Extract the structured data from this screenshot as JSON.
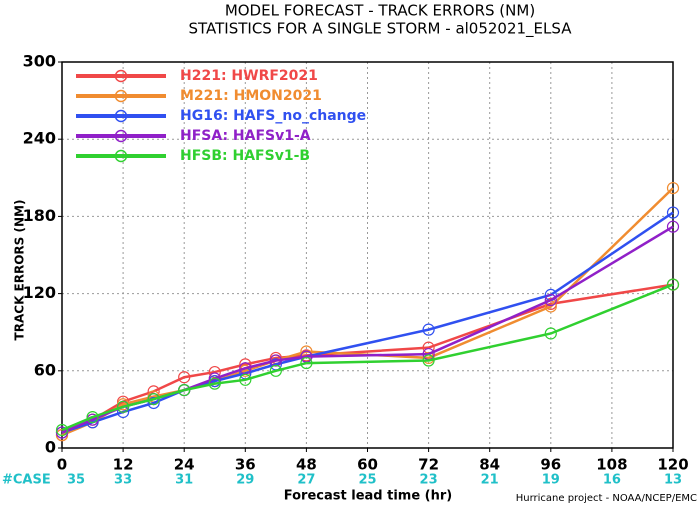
{
  "chart_data": {
    "type": "line",
    "title": "MODEL FORECAST - TRACK ERRORS (NM)",
    "subtitle": "STATISTICS FOR A SINGLE STORM - al052021_ELSA",
    "x_label": "Forecast lead time (hr)",
    "y_label": "TRACK ERRORS (NM)",
    "footer": "Hurricane project - NOAA/NCEP/EMC",
    "cases_label": "#CASE",
    "cases": [
      35,
      33,
      31,
      29,
      27,
      25,
      23,
      21,
      19,
      16,
      13
    ],
    "x": [
      0,
      6,
      12,
      18,
      24,
      30,
      36,
      42,
      48,
      72,
      96,
      120
    ],
    "xlim": [
      0,
      120
    ],
    "xticks": [
      0,
      12,
      24,
      36,
      48,
      60,
      72,
      84,
      96,
      108,
      120
    ],
    "ylim": [
      0,
      300
    ],
    "yticks": [
      0,
      60,
      120,
      180,
      240,
      300
    ],
    "grid": true,
    "legend": "upper left",
    "series": [
      {
        "name": "H221: HWRF2021",
        "color": "#f04848",
        "values": [
          10,
          22,
          36,
          44,
          55,
          59,
          65,
          70,
          72,
          78,
          112,
          127
        ]
      },
      {
        "name": "M221: HMON2021",
        "color": "#f08c30",
        "values": [
          10,
          20,
          34,
          40,
          45,
          52,
          60,
          68,
          75,
          70,
          110,
          202
        ]
      },
      {
        "name": "HG16: HAFS_no_change",
        "color": "#3050f0",
        "values": [
          12,
          20,
          28,
          35,
          45,
          52,
          58,
          65,
          71,
          92,
          119,
          183
        ]
      },
      {
        "name": "HFSA: HAFSv1-A",
        "color": "#9020c8",
        "values": [
          12,
          22,
          32,
          38,
          45,
          54,
          62,
          68,
          71,
          73,
          115,
          172
        ]
      },
      {
        "name": "HFSB: HAFSv1-B",
        "color": "#30d030",
        "values": [
          14,
          24,
          32,
          38,
          45,
          50,
          53,
          60,
          66,
          68,
          89,
          127
        ]
      }
    ]
  }
}
